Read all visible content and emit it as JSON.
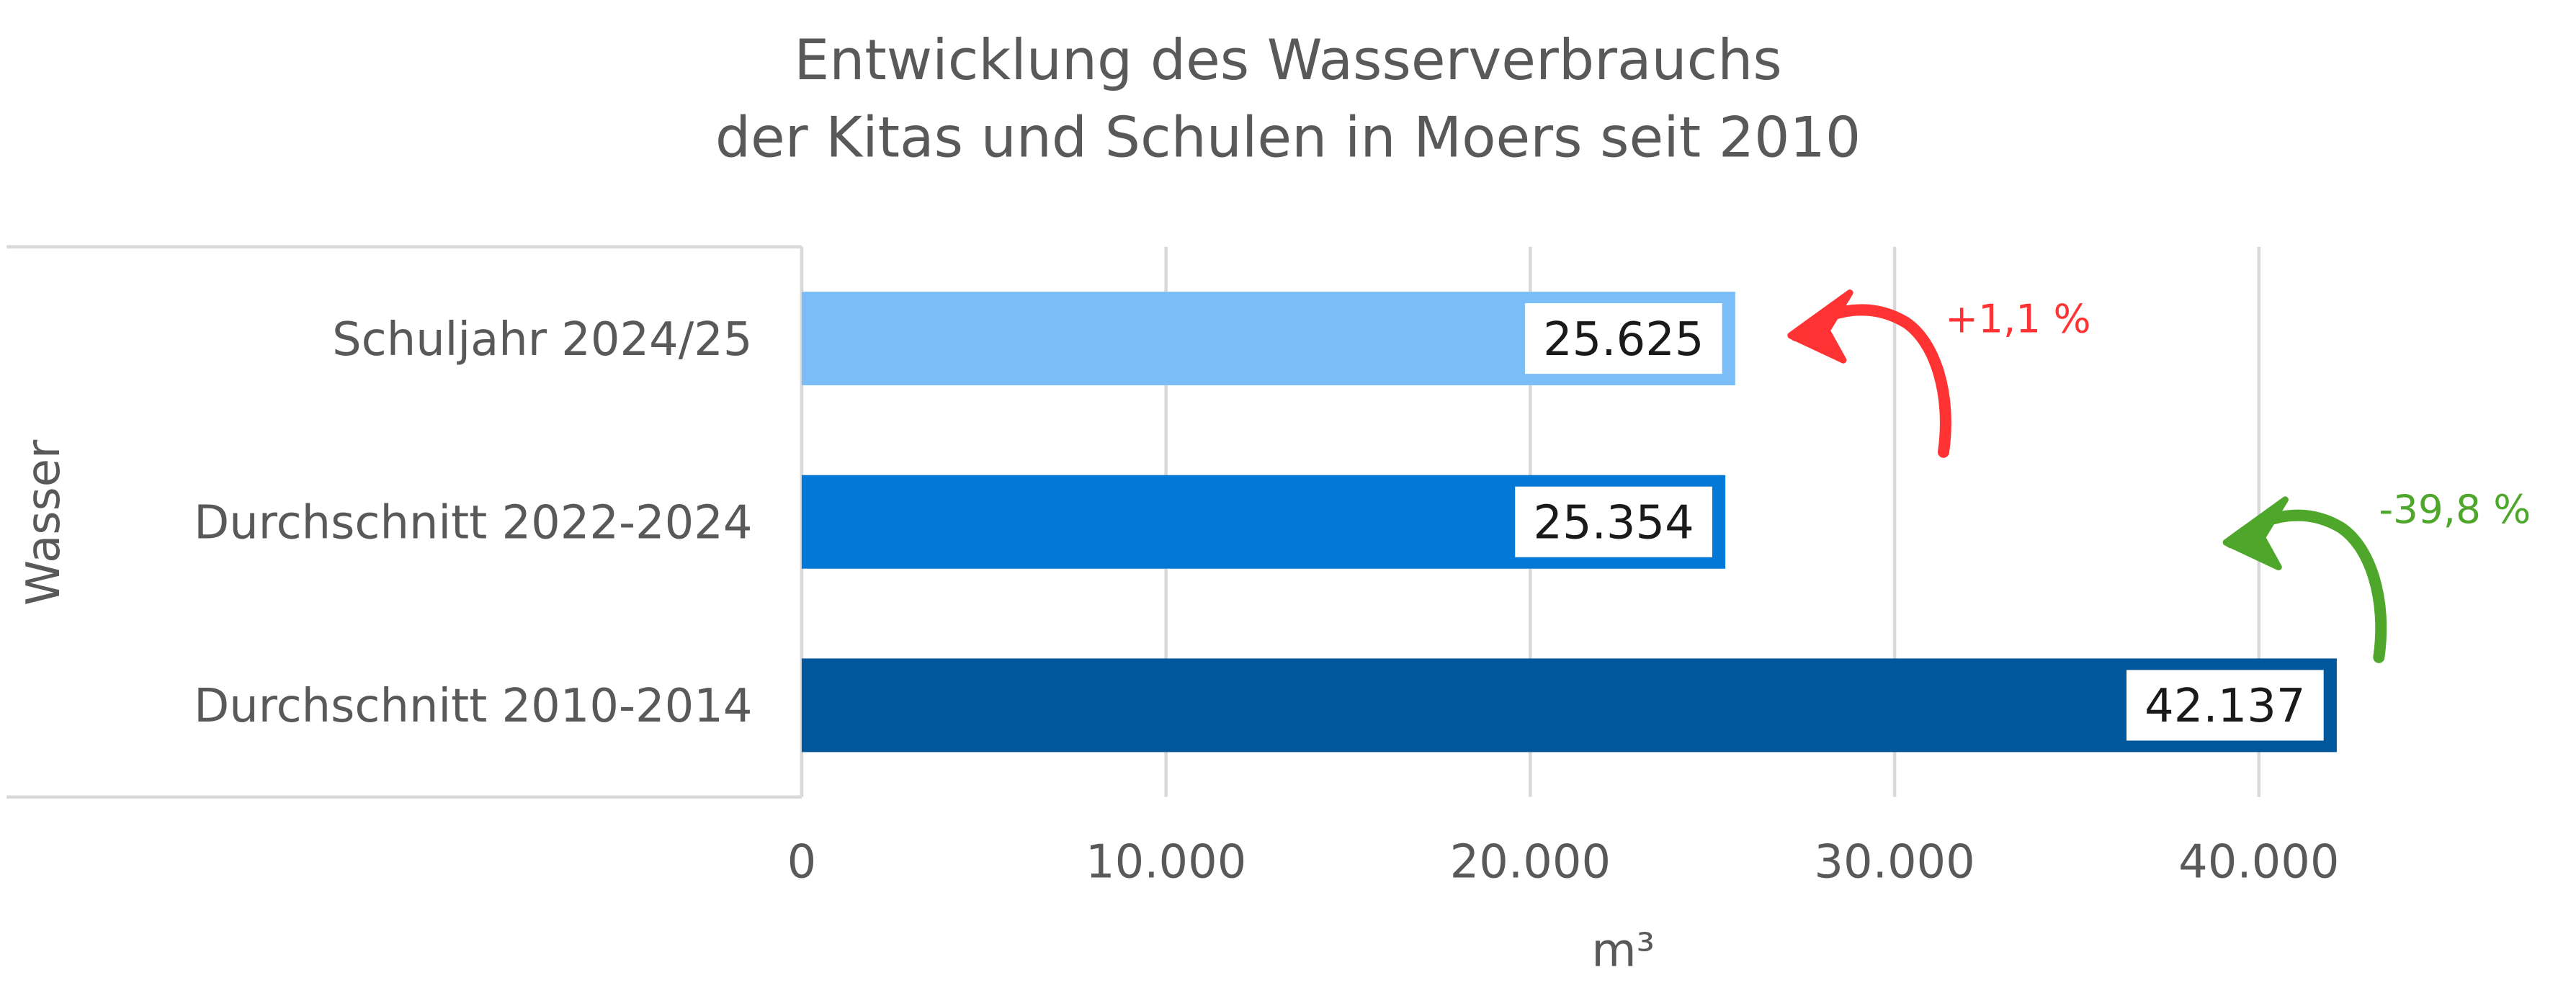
{
  "chart_data": {
    "type": "bar",
    "orientation": "horizontal",
    "title": [
      "Entwicklung des Wasserverbrauchs",
      "der Kitas und Schulen in Moers seit 2010"
    ],
    "xlabel": "m³",
    "ylabel": "Wasser",
    "xlim": [
      0,
      42137
    ],
    "xticks": [
      0,
      10000,
      20000,
      30000,
      40000
    ],
    "xtick_labels": [
      "0",
      "10.000",
      "20.000",
      "30.000",
      "40.000"
    ],
    "grid": true,
    "categories": [
      "Schuljahr 2024/25",
      "Durchschnitt 2022-2024",
      "Durchschnitt 2010-2014"
    ],
    "values": [
      25625,
      25354,
      42137
    ],
    "data_labels": [
      "25.625",
      "25.354",
      "42.137"
    ],
    "colors": [
      "#7bbdf7",
      "#0379d7",
      "#01579b"
    ],
    "annotations": [
      {
        "text": "+1,1 %",
        "color": "#ff3333",
        "icon": "curved-arrow-left"
      },
      {
        "text": "-39,8 %",
        "color": "#4ea72a",
        "icon": "curved-arrow-left"
      }
    ]
  }
}
